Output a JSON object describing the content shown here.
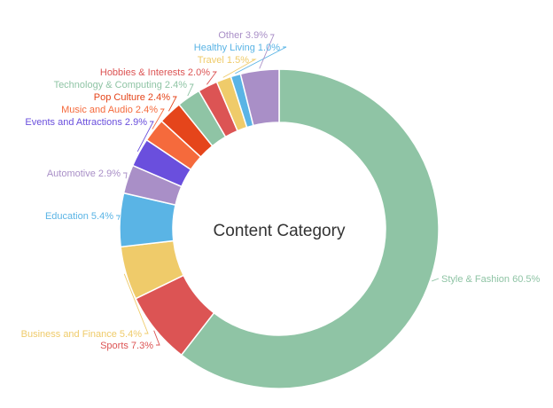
{
  "chart_data": {
    "type": "pie",
    "variant": "donut",
    "title": "Content Category",
    "label_format": "{name} {value}%",
    "slices": [
      {
        "name": "Style & Fashion",
        "value": 60.5,
        "color": "#8fc4a5"
      },
      {
        "name": "Sports",
        "value": 7.3,
        "color": "#dc5454"
      },
      {
        "name": "Business and Finance",
        "value": 5.4,
        "color": "#efcb6a"
      },
      {
        "name": "Education",
        "value": 5.4,
        "color": "#5ab4e5"
      },
      {
        "name": "Automotive",
        "value": 2.9,
        "color": "#a98fc7"
      },
      {
        "name": "Events and Attractions",
        "value": 2.9,
        "color": "#6a4fdd"
      },
      {
        "name": "Music and Audio",
        "value": 2.4,
        "color": "#f56a3c"
      },
      {
        "name": "Pop Culture",
        "value": 2.4,
        "color": "#e5451b"
      },
      {
        "name": "Technology & Computing",
        "value": 2.4,
        "color": "#8fc4a5"
      },
      {
        "name": "Hobbies & Interests",
        "value": 2.0,
        "color": "#dc5454"
      },
      {
        "name": "Travel",
        "value": 1.5,
        "color": "#efcb6a"
      },
      {
        "name": "Healthy Living",
        "value": 1.0,
        "color": "#5ab4e5"
      },
      {
        "name": "Other",
        "value": 3.9,
        "color": "#a98fc7"
      }
    ],
    "start_angle_deg": 0,
    "direction": "clockwise",
    "legend": "none"
  }
}
